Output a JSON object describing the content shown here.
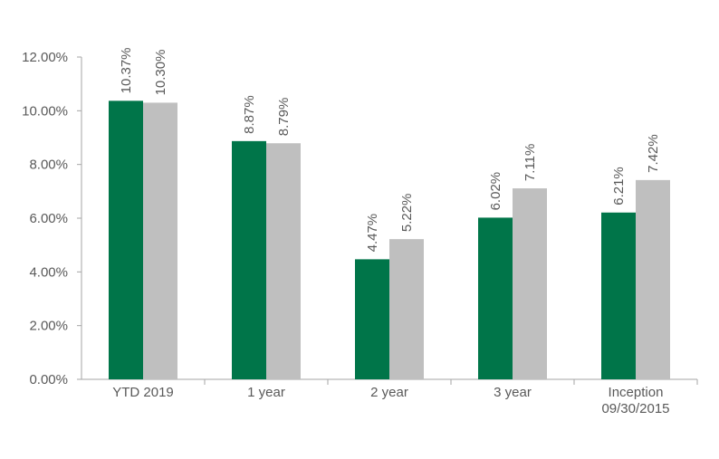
{
  "chart_data": {
    "type": "bar",
    "title": "",
    "xlabel": "",
    "ylabel": "",
    "ylim": [
      0,
      12
    ],
    "y_ticks": [
      "0.00%",
      "2.00%",
      "4.00%",
      "6.00%",
      "8.00%",
      "10.00%",
      "12.00%"
    ],
    "grid": false,
    "legend": "none",
    "categories": [
      [
        "YTD 2019"
      ],
      [
        "1 year"
      ],
      [
        "2 year"
      ],
      [
        "3 year"
      ],
      [
        "Inception",
        "09/30/2015"
      ]
    ],
    "series": [
      {
        "color": "#007549",
        "values": [
          10.37,
          8.87,
          4.47,
          6.02,
          6.21
        ],
        "labels": [
          "10.37%",
          "8.87%",
          "4.47%",
          "6.02%",
          "6.21%"
        ]
      },
      {
        "color": "#bfbfbf",
        "values": [
          10.3,
          8.79,
          5.22,
          7.11,
          7.42
        ],
        "labels": [
          "10.30%",
          "8.79%",
          "5.22%",
          "7.11%",
          "7.42%"
        ]
      }
    ]
  }
}
